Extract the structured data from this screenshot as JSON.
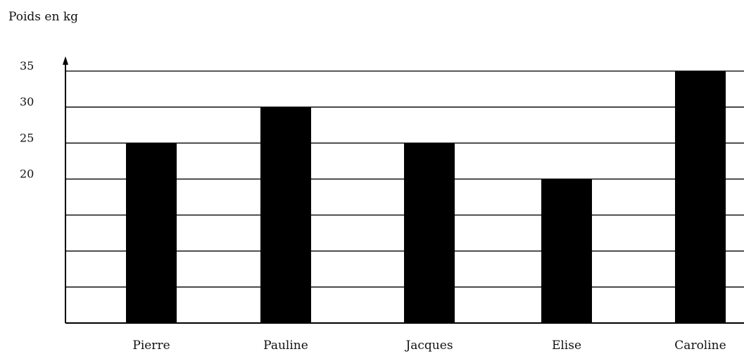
{
  "chart_data": {
    "type": "bar",
    "ylabel": "Poids en kg",
    "xlabel": "",
    "categories": [
      "Pierre",
      "Pauline",
      "Jacques",
      "Elise",
      "Caroline"
    ],
    "values": [
      25,
      30,
      25,
      20,
      35
    ],
    "y_tick_labels": [
      "20",
      "25",
      "30",
      "35"
    ],
    "y_tick_values": [
      20,
      25,
      30,
      35
    ],
    "gridline_values": [
      5,
      10,
      15,
      20,
      25,
      30,
      35
    ],
    "ylim": [
      0,
      35
    ],
    "grid": true,
    "colors": {
      "bar": "#000000",
      "grid": "#222222",
      "axis": "#000000"
    }
  }
}
